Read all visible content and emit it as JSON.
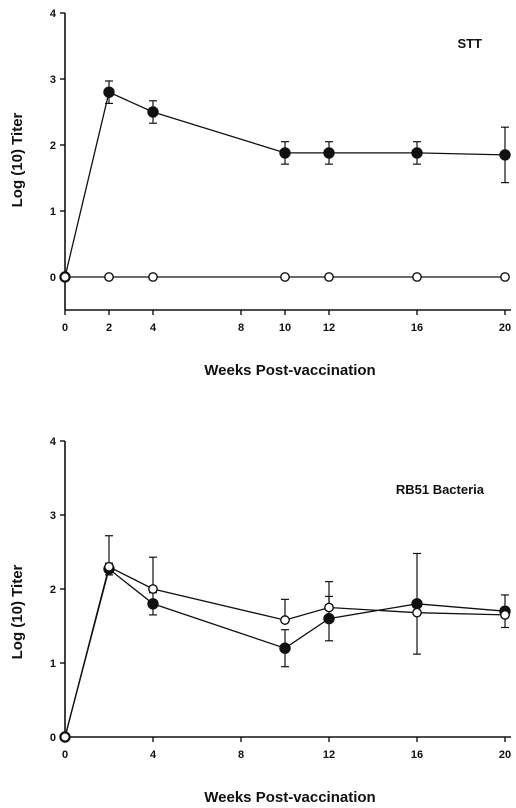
{
  "chart_data": [
    {
      "type": "line",
      "title": "STT",
      "xlabel": "Weeks Post-vaccination",
      "ylabel": "Log (10) Titer",
      "xlim": [
        0,
        20
      ],
      "ylim": [
        -0.5,
        4
      ],
      "x_ticks": [
        0,
        4,
        8,
        12,
        16,
        20
      ],
      "x_tick_labels": [
        "0",
        "2",
        "4",
        "8",
        "10",
        "12",
        "16",
        "20"
      ],
      "x_tick_values": [
        0,
        2,
        4,
        8,
        10,
        12,
        16,
        20
      ],
      "y_ticks": [
        0,
        1,
        2,
        3,
        4
      ],
      "y_tick_labels": [
        "0",
        "1",
        "2",
        "3",
        "4"
      ],
      "grid": false,
      "series": [
        {
          "marker": "filled-circle",
          "x": [
            0,
            2,
            4,
            10,
            12,
            16,
            20
          ],
          "y": [
            0,
            2.8,
            2.5,
            1.88,
            1.88,
            1.88,
            1.85
          ],
          "error": [
            0,
            0.17,
            0.17,
            0.17,
            0.17,
            0.17,
            0.42
          ]
        },
        {
          "marker": "open-circle",
          "x": [
            0,
            2,
            4,
            10,
            12,
            16,
            20
          ],
          "y": [
            0,
            0,
            0,
            0,
            0,
            0,
            0
          ],
          "error": [
            0,
            0,
            0,
            0,
            0,
            0,
            0
          ]
        }
      ]
    },
    {
      "type": "line",
      "title": "RB51 Bacteria",
      "xlabel": "Weeks Post-vaccination",
      "ylabel": "Log (10) Titer",
      "xlim": [
        0,
        20
      ],
      "ylim": [
        0,
        4
      ],
      "x_tick_labels": [
        "0",
        "4",
        "8",
        "12",
        "16",
        "20"
      ],
      "x_tick_values": [
        0,
        4,
        8,
        12,
        16,
        20
      ],
      "y_tick_labels": [
        "0",
        "1",
        "2",
        "3",
        "4"
      ],
      "y_tick_values": [
        0,
        1,
        2,
        3,
        4
      ],
      "grid": false,
      "series": [
        {
          "marker": "filled-circle",
          "x": [
            0,
            2,
            4,
            10,
            12,
            16,
            20
          ],
          "y": [
            0,
            2.27,
            1.8,
            1.2,
            1.6,
            1.8,
            1.7
          ],
          "error": [
            0,
            0.08,
            0.15,
            0.25,
            0.3,
            0.68,
            0.22
          ]
        },
        {
          "marker": "open-circle",
          "x": [
            0,
            2,
            4,
            10,
            12,
            16,
            20
          ],
          "y": [
            0,
            2.3,
            2.0,
            1.58,
            1.75,
            1.68,
            1.65
          ],
          "error": [
            0,
            0.42,
            0.43,
            0.28,
            0.35,
            0.0,
            0.1
          ]
        }
      ]
    }
  ]
}
